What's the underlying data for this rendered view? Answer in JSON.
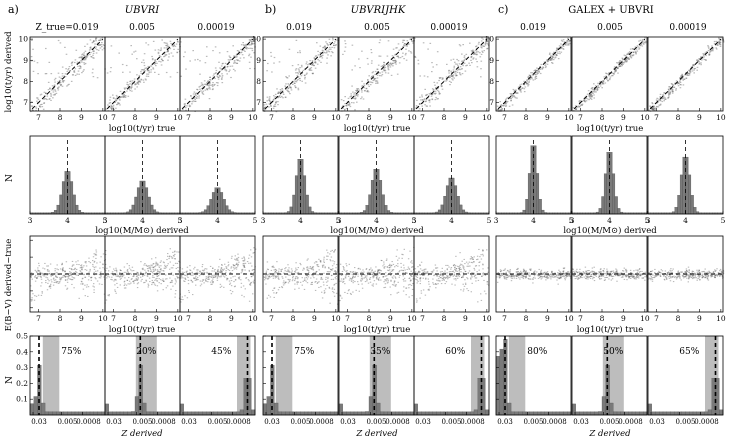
{
  "figure": {
    "groups": [
      {
        "letter": "a)",
        "title": "UBVRI",
        "title_italic": true
      },
      {
        "letter": "b)",
        "title": "UBVRIJHK",
        "title_italic": true
      },
      {
        "letter": "c)",
        "title": "GALEX + UBVRI",
        "title_italic": false
      }
    ],
    "metallicity_headers": [
      [
        "Z_true=0.019",
        "0.005",
        "0.00019"
      ],
      [
        "0.019",
        "0.005",
        "0.00019"
      ],
      [
        "0.019",
        "0.005",
        "0.00019"
      ]
    ],
    "row_labels": {
      "age": "log10(t/yr) derived",
      "mass": "N",
      "ext": "E(B−V) derived−true",
      "z": "N"
    },
    "row_xlabels": {
      "age": "log10(t/yr) true",
      "mass": "log10(M/M⊙) derived",
      "ext": "log10(t/yr) true",
      "z": "Z derived"
    },
    "z_percentages": [
      [
        "75%",
        "20%",
        "45%"
      ],
      [
        "75%",
        "35%",
        "60%"
      ],
      [
        "80%",
        "50%",
        "65%"
      ]
    ],
    "chart_data": [
      {
        "type": "scatter",
        "row": "age",
        "xlabel": "log10(t/yr) true",
        "ylabel": "log10(t/yr) derived",
        "xlim": [
          6.6,
          10.1
        ],
        "ylim": [
          6.6,
          10.1
        ],
        "xticks": [
          "7",
          "8",
          "9",
          "10"
        ],
        "yticks": [
          "7",
          "8",
          "9",
          "10"
        ],
        "reference_line": "1:1 dashed"
      },
      {
        "type": "bar",
        "row": "mass",
        "xlabel": "log10(M/M⊙) derived",
        "ylabel": "N",
        "xlim": [
          3,
          5
        ],
        "xticks": [
          "3",
          "4",
          "5"
        ],
        "true_value": 4,
        "peak_fraction": [
          [
            0.55,
            0.42,
            0.33
          ],
          [
            0.72,
            0.58,
            0.46
          ],
          [
            0.92,
            0.82,
            0.75
          ]
        ]
      },
      {
        "type": "scatter",
        "row": "ext",
        "xlabel": "log10(t/yr) true",
        "ylabel": "E(B−V) derived−true",
        "xlim": [
          6.6,
          10.1
        ],
        "ylim": [
          -0.45,
          0.45
        ],
        "xticks": [
          "7",
          "8",
          "9",
          "10"
        ],
        "yticks": [
          "0.4",
          "0.2",
          "0",
          "−0.2",
          "−0.4"
        ]
      },
      {
        "type": "bar",
        "row": "z",
        "xlabel": "Z derived",
        "ylabel": "N",
        "xticks": [
          "0.03",
          "0.005",
          "0.0008"
        ],
        "yticks": [
          "0.1",
          "0.2",
          "0.3",
          "0.4",
          "0.5"
        ],
        "ylim": [
          0,
          0.5
        ]
      }
    ]
  }
}
